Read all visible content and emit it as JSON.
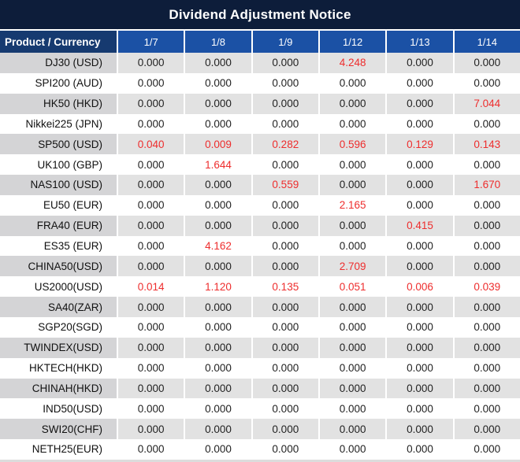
{
  "title": "Dividend Adjustment Notice",
  "table": {
    "product_header": "Product / Currency",
    "date_headers": [
      "1/7",
      "1/8",
      "1/9",
      "1/12",
      "1/13",
      "1/14"
    ],
    "rows": [
      {
        "product": "DJ30 (USD)",
        "values": [
          "0.000",
          "0.000",
          "0.000",
          "4.248",
          "0.000",
          "0.000"
        ],
        "red_indices": [
          3
        ]
      },
      {
        "product": "SPI200 (AUD)",
        "values": [
          "0.000",
          "0.000",
          "0.000",
          "0.000",
          "0.000",
          "0.000"
        ],
        "red_indices": []
      },
      {
        "product": "HK50 (HKD)",
        "values": [
          "0.000",
          "0.000",
          "0.000",
          "0.000",
          "0.000",
          "7.044"
        ],
        "red_indices": [
          5
        ]
      },
      {
        "product": "Nikkei225 (JPN)",
        "values": [
          "0.000",
          "0.000",
          "0.000",
          "0.000",
          "0.000",
          "0.000"
        ],
        "red_indices": []
      },
      {
        "product": "SP500 (USD)",
        "values": [
          "0.040",
          "0.009",
          "0.282",
          "0.596",
          "0.129",
          "0.143"
        ],
        "red_indices": [
          0,
          1,
          2,
          3,
          4,
          5
        ]
      },
      {
        "product": "UK100 (GBP)",
        "values": [
          "0.000",
          "1.644",
          "0.000",
          "0.000",
          "0.000",
          "0.000"
        ],
        "red_indices": [
          1
        ]
      },
      {
        "product": "NAS100 (USD)",
        "values": [
          "0.000",
          "0.000",
          "0.559",
          "0.000",
          "0.000",
          "1.670"
        ],
        "red_indices": [
          2,
          5
        ]
      },
      {
        "product": "EU50 (EUR)",
        "values": [
          "0.000",
          "0.000",
          "0.000",
          "2.165",
          "0.000",
          "0.000"
        ],
        "red_indices": [
          3
        ]
      },
      {
        "product": "FRA40 (EUR)",
        "values": [
          "0.000",
          "0.000",
          "0.000",
          "0.000",
          "0.415",
          "0.000"
        ],
        "red_indices": [
          4
        ]
      },
      {
        "product": "ES35 (EUR)",
        "values": [
          "0.000",
          "4.162",
          "0.000",
          "0.000",
          "0.000",
          "0.000"
        ],
        "red_indices": [
          1
        ]
      },
      {
        "product": "CHINA50(USD)",
        "values": [
          "0.000",
          "0.000",
          "0.000",
          "2.709",
          "0.000",
          "0.000"
        ],
        "red_indices": [
          3
        ]
      },
      {
        "product": "US2000(USD)",
        "values": [
          "0.014",
          "1.120",
          "0.135",
          "0.051",
          "0.006",
          "0.039"
        ],
        "red_indices": [
          0,
          1,
          2,
          3,
          4,
          5
        ]
      },
      {
        "product": "SA40(ZAR)",
        "values": [
          "0.000",
          "0.000",
          "0.000",
          "0.000",
          "0.000",
          "0.000"
        ],
        "red_indices": []
      },
      {
        "product": "SGP20(SGD)",
        "values": [
          "0.000",
          "0.000",
          "0.000",
          "0.000",
          "0.000",
          "0.000"
        ],
        "red_indices": []
      },
      {
        "product": "TWINDEX(USD)",
        "values": [
          "0.000",
          "0.000",
          "0.000",
          "0.000",
          "0.000",
          "0.000"
        ],
        "red_indices": []
      },
      {
        "product": "HKTECH(HKD)",
        "values": [
          "0.000",
          "0.000",
          "0.000",
          "0.000",
          "0.000",
          "0.000"
        ],
        "red_indices": []
      },
      {
        "product": "CHINAH(HKD)",
        "values": [
          "0.000",
          "0.000",
          "0.000",
          "0.000",
          "0.000",
          "0.000"
        ],
        "red_indices": []
      },
      {
        "product": "IND50(USD)",
        "values": [
          "0.000",
          "0.000",
          "0.000",
          "0.000",
          "0.000",
          "0.000"
        ],
        "red_indices": []
      },
      {
        "product": "SWI20(CHF)",
        "values": [
          "0.000",
          "0.000",
          "0.000",
          "0.000",
          "0.000",
          "0.000"
        ],
        "red_indices": []
      },
      {
        "product": "NETH25(EUR)",
        "values": [
          "0.000",
          "0.000",
          "0.000",
          "0.000",
          "0.000",
          "0.000"
        ],
        "red_indices": []
      }
    ]
  },
  "colors": {
    "title_bg": "#0d1d3a",
    "product_header_bg": "#163a70",
    "date_header_bg": "#1b51a5",
    "stripe_product": "#d4d4d6",
    "stripe_values": "#e2e2e2",
    "value_text": "#222222",
    "highlight_red": "#ee2d2d",
    "header_text": "#ffffff"
  }
}
